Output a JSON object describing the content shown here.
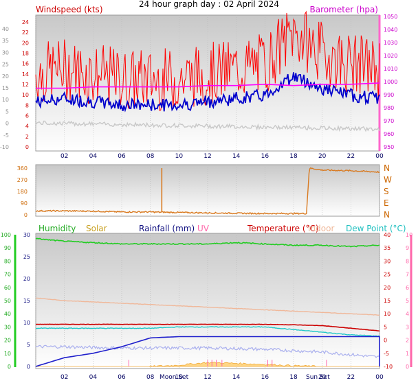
{
  "title": "24 hour graph day : 02 April 2024",
  "x_ticks": [
    "02",
    "04",
    "06",
    "08",
    "10",
    "12",
    "14",
    "16",
    "18",
    "20",
    "22",
    "00"
  ],
  "colors": {
    "wind": "#ff0000",
    "wind_avg": "#0000cc",
    "baro": "#ff00ff",
    "gust_low": "#c8c8c8",
    "direction": "#d97a20",
    "humidity": "#22cc22",
    "solar": "#f0a020",
    "rainfall": "#2020cc",
    "uv": "#ff66aa",
    "temperature": "#cc0000",
    "indoor": "#f0b89a",
    "dewpoint": "#20c8c8",
    "apparent": "#aab0ee",
    "green_axis": "#22cc22",
    "pink_axis": "#ff66aa"
  },
  "panel1": {
    "left_label": "Windspeed (kts)",
    "right_label": "Barometer (hpa)",
    "left_ticks": [
      "24",
      "22",
      "20",
      "18",
      "16",
      "14",
      "12",
      "10",
      "8",
      "6",
      "4",
      "2",
      "0"
    ],
    "left_outer_ticks": [
      "40",
      "35",
      "30",
      "25",
      "20",
      "15",
      "10",
      "5",
      "0",
      "-5",
      "-10"
    ],
    "right_ticks": [
      "1050",
      "1040",
      "1030",
      "1020",
      "1010",
      "1000",
      "990",
      "980",
      "970",
      "960",
      "950"
    ]
  },
  "panel2": {
    "left_ticks": [
      "360",
      "270",
      "180",
      "90",
      "0"
    ],
    "right_ticks": [
      "N",
      "W",
      "S",
      "E",
      "N"
    ]
  },
  "panel3": {
    "legend": {
      "humidity": "Humidity",
      "solar": "Solar",
      "rainfall": "Rainfall (mm)",
      "uv": "UV",
      "temperature": "Temperature (°C)",
      "indoor": "Indoor",
      "dewpoint": "Dew Point (°C)"
    },
    "humidity_ticks": [
      "100",
      "90",
      "80",
      "70",
      "60",
      "50",
      "40",
      "30",
      "20",
      "10",
      "0"
    ],
    "rain_ticks": [
      "30",
      "25",
      "20",
      "15",
      "10",
      "5",
      "0"
    ],
    "temp_ticks": [
      "40",
      "35",
      "30",
      "25",
      "20",
      "15",
      "10",
      "5",
      "0",
      "-5",
      "-10"
    ],
    "uv_ticks": [
      "10",
      "9",
      "8",
      "7",
      "6",
      "5",
      "4",
      "3",
      "2",
      "1",
      "0"
    ],
    "moon_set": "Moon Set",
    "sun_set": "Sun Set"
  },
  "chart_data": [
    {
      "type": "line",
      "title": "24 hour graph day : 02 April 2024",
      "x": [
        0,
        2,
        4,
        6,
        8,
        10,
        12,
        14,
        16,
        18,
        20,
        22,
        24
      ],
      "series": [
        {
          "name": "Windspeed (kts)",
          "values": [
            14,
            15,
            14,
            13,
            13,
            13,
            14,
            15,
            16,
            22,
            18,
            16,
            15
          ]
        },
        {
          "name": "Barometer (hpa)",
          "values": [
            995,
            995,
            996,
            996,
            996,
            996,
            997,
            997,
            998,
            997,
            998,
            998,
            999
          ]
        }
      ],
      "ylabel": "Windspeed (kts)",
      "ylim": [
        0,
        25
      ],
      "y2lim": [
        950,
        1050
      ]
    },
    {
      "type": "line",
      "x": [
        0,
        2,
        4,
        6,
        8,
        8.7,
        8.9,
        10,
        12,
        14,
        16,
        18.9,
        19.1,
        20,
        22,
        24
      ],
      "series": [
        {
          "values": [
            30,
            30,
            28,
            22,
            22,
            20,
            20,
            18,
            15,
            12,
            10,
            10,
            360,
            345,
            340,
            330
          ]
        }
      ],
      "ylim": [
        0,
        360
      ]
    },
    {
      "type": "line",
      "x": [
        0,
        2,
        4,
        6,
        8,
        10,
        12,
        14,
        16,
        18,
        20,
        22,
        24
      ],
      "series": [
        {
          "name": "Humidity",
          "values": [
            97,
            95,
            94,
            93,
            93,
            93,
            93,
            94,
            93,
            92,
            92,
            91,
            92
          ]
        },
        {
          "name": "Rainfall (mm)",
          "values": [
            0,
            2,
            3,
            4.5,
            6.5,
            6.8,
            6.8,
            6.8,
            6.8,
            6.8,
            6.8,
            6.8,
            6.8
          ]
        },
        {
          "name": "Temperature (°C)",
          "values": [
            6,
            6,
            6,
            6,
            6,
            6,
            6,
            6,
            6,
            5.8,
            5.5,
            4.5,
            3.5
          ]
        },
        {
          "name": "Indoor",
          "values": [
            16,
            15,
            14.5,
            14,
            13.5,
            13,
            12.5,
            12,
            11.5,
            11,
            10.5,
            10,
            9.5
          ]
        },
        {
          "name": "Dew Point (°C)",
          "values": [
            4.5,
            4.5,
            4.5,
            4.5,
            4.5,
            5,
            5,
            5,
            5,
            4,
            3,
            2,
            1.5
          ]
        },
        {
          "name": "Solar",
          "values": [
            0,
            0,
            0,
            0,
            0,
            0.5,
            1.5,
            1.2,
            0.8,
            0.3,
            0,
            0,
            0
          ]
        }
      ]
    }
  ]
}
